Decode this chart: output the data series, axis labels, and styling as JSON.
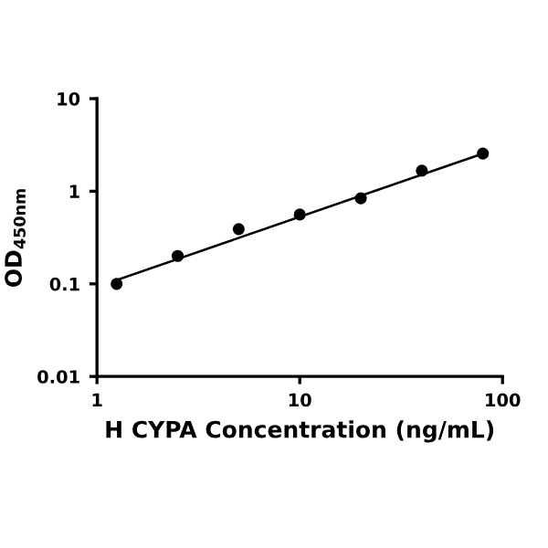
{
  "chart_data": {
    "type": "scatter",
    "xlabel": "H CYPA Concentration (ng/mL)",
    "ylabel": "OD$_{450nm}$",
    "log": "xy",
    "xlim": [
      1,
      100
    ],
    "xticks": [
      1,
      10,
      100
    ],
    "ylim": [
      0.01,
      10
    ],
    "yticks": [
      0.01,
      0.1,
      1,
      10
    ],
    "grid": false,
    "legend": false,
    "series": [
      {
        "color": "#000000",
        "marker": "circle",
        "x": [
          1.25,
          2.5,
          5,
          10,
          20,
          40,
          80
        ],
        "values": [
          0.1,
          0.2,
          0.39,
          0.56,
          0.84,
          1.67,
          2.55
        ]
      },
      {
        "type": "line",
        "color": "#000000",
        "marker": "none",
        "line_style": "solid",
        "x": [
          1.25,
          80
        ],
        "values": [
          0.11,
          2.55
        ]
      }
    ]
  }
}
